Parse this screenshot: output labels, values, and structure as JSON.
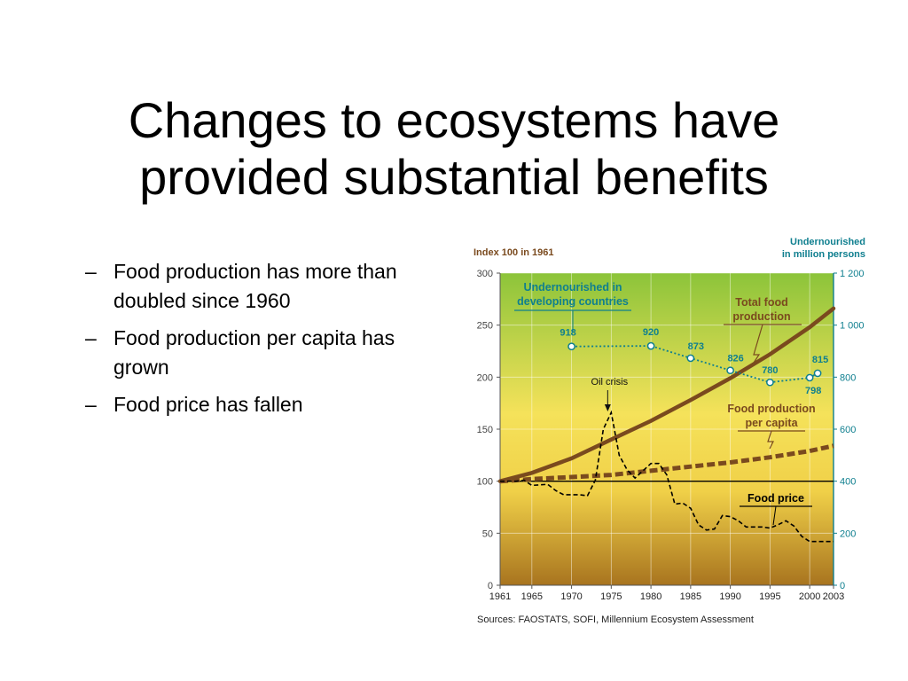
{
  "slide": {
    "title_lines": [
      "Changes to ecosystems have",
      "provided substantial benefits"
    ],
    "bullets": [
      "Food production has more than doubled since 1960",
      "Food production per capita has grown",
      "Food price has fallen"
    ],
    "bullet_marker": "–"
  },
  "colors": {
    "food_production": "#7a4a1e",
    "undernourished": "#0f7f8f",
    "food_price": "#000000",
    "bg_top": "#8cc43a",
    "bg_mid": "#f5e25a",
    "bg_bottom": "#a8741f",
    "right_axis": "#0f7f8f"
  },
  "chart_data": {
    "type": "line",
    "left_axis_title": "Index 100 in 1961",
    "right_axis_title": [
      "Undernourished",
      "in million persons"
    ],
    "source": "Sources: FAOSTATS, SOFI, Millennium Ecosystem Assessment",
    "x_ticks": [
      "1961",
      "1965",
      "1970",
      "1975",
      "1980",
      "1985",
      "1990",
      "1995",
      "2000",
      "2003"
    ],
    "x_tick_values": [
      1961,
      1965,
      1970,
      1975,
      1980,
      1985,
      1990,
      1995,
      2000,
      2003
    ],
    "xlim": [
      1961,
      2003
    ],
    "left_ylim": [
      0,
      300
    ],
    "left_y_ticks": [
      "0",
      "50",
      "100",
      "150",
      "200",
      "250",
      "300"
    ],
    "right_ylim": [
      0,
      1200
    ],
    "right_y_ticks": [
      "0",
      "200",
      "400",
      "600",
      "800",
      "1 000",
      "1 200"
    ],
    "reference_line_index": 100,
    "series": [
      {
        "name": "Total food production",
        "label_lines": [
          "Total food",
          "production"
        ],
        "axis": "left",
        "x": [
          1961,
          1965,
          1970,
          1975,
          1980,
          1985,
          1990,
          1995,
          2000,
          2003
        ],
        "y": [
          100,
          108,
          122,
          140,
          158,
          178,
          199,
          222,
          248,
          266
        ]
      },
      {
        "name": "Food production per capita",
        "label_lines": [
          "Food production",
          "per capita"
        ],
        "axis": "left",
        "x": [
          1961,
          1965,
          1970,
          1975,
          1980,
          1985,
          1990,
          1995,
          2000,
          2003
        ],
        "y": [
          100,
          102,
          104,
          106,
          110,
          114,
          118,
          123,
          129,
          134
        ]
      },
      {
        "name": "Food price",
        "label_lines": [
          "Food price"
        ],
        "axis": "left",
        "x": [
          1961,
          1963,
          1964,
          1965,
          1967,
          1968,
          1969,
          1971,
          1972,
          1973,
          1974,
          1975,
          1976,
          1977,
          1978,
          1979,
          1980,
          1981,
          1982,
          1983,
          1984,
          1985,
          1986,
          1987,
          1988,
          1989,
          1990,
          1991,
          1992,
          1993,
          1994,
          1995,
          1996,
          1997,
          1998,
          1999,
          2000,
          2001,
          2002,
          2003
        ],
        "y": [
          100,
          100,
          101,
          96,
          97,
          91,
          87,
          87,
          86,
          101,
          150,
          166,
          125,
          111,
          103,
          110,
          117,
          117,
          106,
          78,
          79,
          74,
          58,
          53,
          54,
          67,
          66,
          62,
          56,
          56,
          56,
          55,
          58,
          62,
          57,
          47,
          42,
          42,
          42,
          42
        ]
      },
      {
        "name": "Undernourished in developing countries",
        "label_lines": [
          "Undernourished in",
          "developing countries"
        ],
        "axis": "right",
        "x": [
          1970,
          1980,
          1985,
          1990,
          1995,
          2000,
          2001
        ],
        "y": [
          918,
          920,
          873,
          826,
          780,
          798,
          815
        ],
        "labels": [
          "918",
          "920",
          "873",
          "826",
          "780",
          "798",
          "815"
        ]
      }
    ],
    "annotations": [
      {
        "text": "Oil crisis",
        "x": 1975,
        "y": 166
      }
    ],
    "grid": true,
    "legend": "inline labels"
  }
}
